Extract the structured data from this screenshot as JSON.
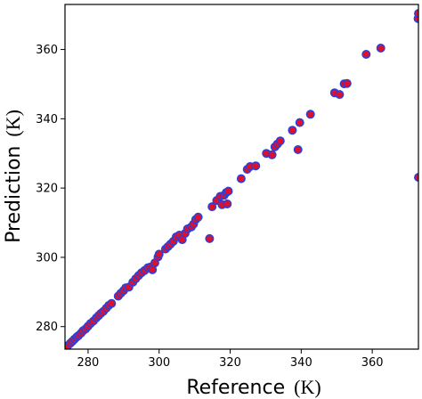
{
  "chart_data": {
    "type": "scatter",
    "xlabel": "Reference",
    "ylabel": "Prediction",
    "unit": "(K)",
    "xlim": [
      273.5,
      373
    ],
    "ylim": [
      273.5,
      373
    ],
    "x_ticks": [
      280,
      300,
      320,
      340,
      360
    ],
    "y_ticks": [
      280,
      300,
      320,
      340,
      360
    ],
    "grid": false,
    "marker_fill": "#e0102a",
    "marker_edge": "#2e3fd8",
    "points": [
      [
        274.3,
        274.5
      ],
      [
        275.0,
        275.2
      ],
      [
        275.6,
        275.8
      ],
      [
        276.2,
        276.4
      ],
      [
        276.8,
        277.0
      ],
      [
        277.3,
        277.4
      ],
      [
        278.0,
        278.1
      ],
      [
        278.6,
        278.8
      ],
      [
        279.3,
        279.3
      ],
      [
        280.0,
        280.1
      ],
      [
        280.7,
        280.9
      ],
      [
        281.5,
        281.6
      ],
      [
        282.3,
        282.5
      ],
      [
        283.0,
        283.2
      ],
      [
        283.6,
        283.8
      ],
      [
        284.3,
        284.4
      ],
      [
        285.1,
        285.3
      ],
      [
        285.8,
        286.1
      ],
      [
        286.6,
        286.7
      ],
      [
        288.5,
        288.8
      ],
      [
        289.2,
        289.6
      ],
      [
        290.0,
        290.4
      ],
      [
        290.6,
        291.2
      ],
      [
        291.5,
        291.4
      ],
      [
        292.6,
        292.8
      ],
      [
        293.4,
        293.8
      ],
      [
        294.2,
        294.7
      ],
      [
        295.0,
        295.5
      ],
      [
        295.9,
        296.2
      ],
      [
        296.8,
        297.0
      ],
      [
        297.6,
        297.2
      ],
      [
        298.1,
        296.4
      ],
      [
        298.8,
        298.4
      ],
      [
        299.7,
        300.1
      ],
      [
        300.0,
        300.9
      ],
      [
        301.8,
        302.4
      ],
      [
        302.5,
        303.1
      ],
      [
        303.2,
        303.8
      ],
      [
        304.0,
        304.6
      ],
      [
        304.8,
        305.9
      ],
      [
        305.7,
        306.4
      ],
      [
        306.5,
        305.1
      ],
      [
        307.3,
        306.9
      ],
      [
        308.0,
        308.2
      ],
      [
        309.1,
        308.8
      ],
      [
        309.7,
        309.6
      ],
      [
        310.3,
        310.9
      ],
      [
        311.0,
        311.6
      ],
      [
        314.2,
        305.4
      ],
      [
        314.9,
        314.6
      ],
      [
        316.2,
        316.4
      ],
      [
        317.2,
        317.6
      ],
      [
        317.7,
        315.2
      ],
      [
        318.3,
        317.9
      ],
      [
        318.9,
        318.7
      ],
      [
        319.2,
        315.4
      ],
      [
        319.5,
        319.1
      ],
      [
        323.1,
        322.7
      ],
      [
        324.8,
        325.4
      ],
      [
        325.6,
        326.2
      ],
      [
        327.2,
        326.4
      ],
      [
        330.2,
        330.0
      ],
      [
        331.8,
        329.6
      ],
      [
        332.6,
        331.9
      ],
      [
        333.3,
        332.7
      ],
      [
        334.1,
        333.6
      ],
      [
        337.5,
        336.7
      ],
      [
        339.1,
        331.1
      ],
      [
        339.6,
        338.9
      ],
      [
        342.6,
        341.3
      ],
      [
        349.4,
        347.5
      ],
      [
        350.8,
        347.0
      ],
      [
        352.1,
        350.1
      ],
      [
        352.9,
        350.2
      ],
      [
        358.3,
        358.6
      ],
      [
        362.4,
        360.4
      ],
      [
        372.9,
        368.9
      ],
      [
        373.0,
        370.4
      ],
      [
        373.0,
        323.1
      ]
    ]
  }
}
